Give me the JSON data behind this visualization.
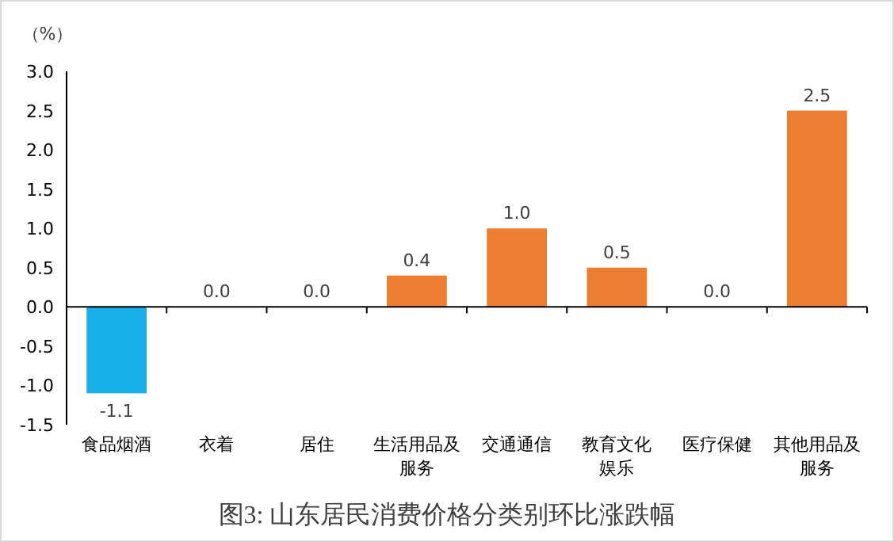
{
  "chart_data": {
    "type": "bar",
    "title": "图3:  山东居民消费价格分类别环比涨跌幅",
    "ylabel": "（%）",
    "categories": [
      "食品烟酒",
      "衣着",
      "居住",
      "生活用品及服务",
      "交通通信",
      "教育文化娱乐",
      "医疗保健",
      "其他用品及服务"
    ],
    "values": [
      -1.1,
      0.0,
      0.0,
      0.4,
      1.0,
      0.5,
      0.0,
      2.5
    ],
    "colors": [
      "#1aaee8",
      "#ed7d31",
      "#ed7d31",
      "#ed7d31",
      "#ed7d31",
      "#ed7d31",
      "#ed7d31",
      "#ed7d31"
    ],
    "ylim": [
      -1.5,
      3.0
    ],
    "yticks": [
      {
        "value": -1.5,
        "label": "-1.5"
      },
      {
        "value": -1.0,
        "label": "-1.0"
      },
      {
        "value": -0.5,
        "label": "-0.5"
      },
      {
        "value": 0,
        "label": "0.0"
      },
      {
        "value": 0.5,
        "label": "0.5"
      },
      {
        "value": 1.0,
        "label": "1.0"
      },
      {
        "value": 1.5,
        "label": "1.5"
      },
      {
        "value": 2.0,
        "label": "2.0"
      },
      {
        "value": 2.5,
        "label": "2.5"
      },
      {
        "value": 3.0,
        "label": "3.0"
      }
    ],
    "value_labels": [
      "-1.1",
      "0.0",
      "0.0",
      "0.4",
      "1.0",
      "0.5",
      "0.0",
      "2.5"
    ]
  }
}
